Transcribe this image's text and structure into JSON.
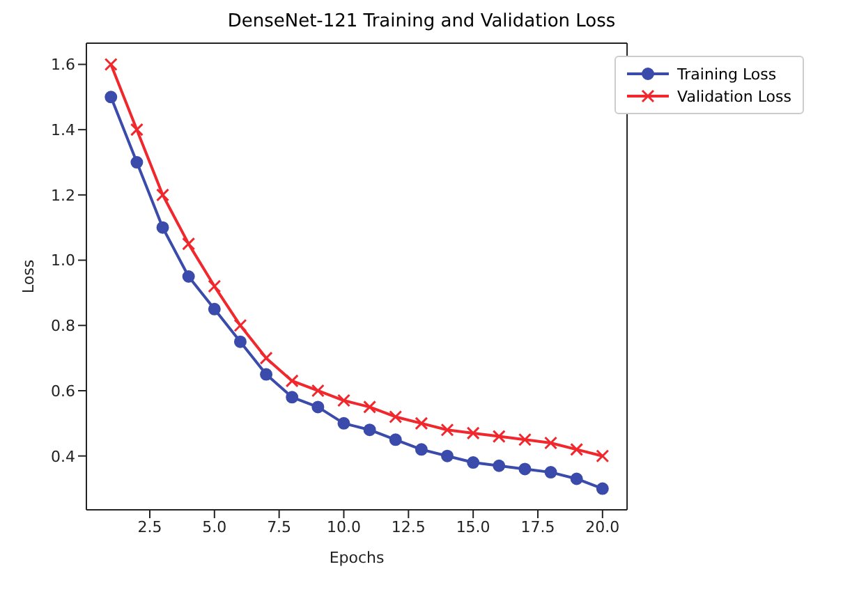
{
  "chart_data": {
    "type": "line",
    "title": "DenseNet-121 Training and Validation Loss",
    "xlabel": "Epochs",
    "ylabel": "Loss",
    "x": [
      1,
      2,
      3,
      4,
      5,
      6,
      7,
      8,
      9,
      10,
      11,
      12,
      13,
      14,
      15,
      16,
      17,
      18,
      19,
      20
    ],
    "series": [
      {
        "name": "Training Loss",
        "color": "#3a4bab",
        "marker": "circle",
        "values": [
          1.5,
          1.3,
          1.1,
          0.95,
          0.85,
          0.75,
          0.65,
          0.58,
          0.55,
          0.5,
          0.48,
          0.45,
          0.42,
          0.4,
          0.38,
          0.37,
          0.36,
          0.35,
          0.33,
          0.3
        ]
      },
      {
        "name": "Validation Loss",
        "color": "#f0282d",
        "marker": "cross",
        "values": [
          1.6,
          1.4,
          1.2,
          1.05,
          0.92,
          0.8,
          0.7,
          0.63,
          0.6,
          0.57,
          0.55,
          0.52,
          0.5,
          0.48,
          0.47,
          0.46,
          0.45,
          0.44,
          0.42,
          0.4
        ]
      }
    ],
    "xlim": [
      0.05,
      20.95
    ],
    "xticks": [
      {
        "value": 2.5,
        "label": "2.5"
      },
      {
        "value": 5,
        "label": "5.0"
      },
      {
        "value": 7.5,
        "label": "7.5"
      },
      {
        "value": 10,
        "label": "10.0"
      },
      {
        "value": 12.5,
        "label": "12.5"
      },
      {
        "value": 15,
        "label": "15.0"
      },
      {
        "value": 17.5,
        "label": "17.5"
      },
      {
        "value": 20,
        "label": "20.0"
      }
    ],
    "ylim": [
      0.235,
      1.665
    ],
    "yticks": [
      {
        "value": 0.4,
        "label": "0.4"
      },
      {
        "value": 0.6,
        "label": "0.6"
      },
      {
        "value": 0.8,
        "label": "0.8"
      },
      {
        "value": 1.0,
        "label": "1.0"
      },
      {
        "value": 1.2,
        "label": "1.2"
      },
      {
        "value": 1.4,
        "label": "1.4"
      },
      {
        "value": 1.6,
        "label": "1.6"
      }
    ],
    "grid": false,
    "legend": "top right",
    "line_style": "solid"
  }
}
